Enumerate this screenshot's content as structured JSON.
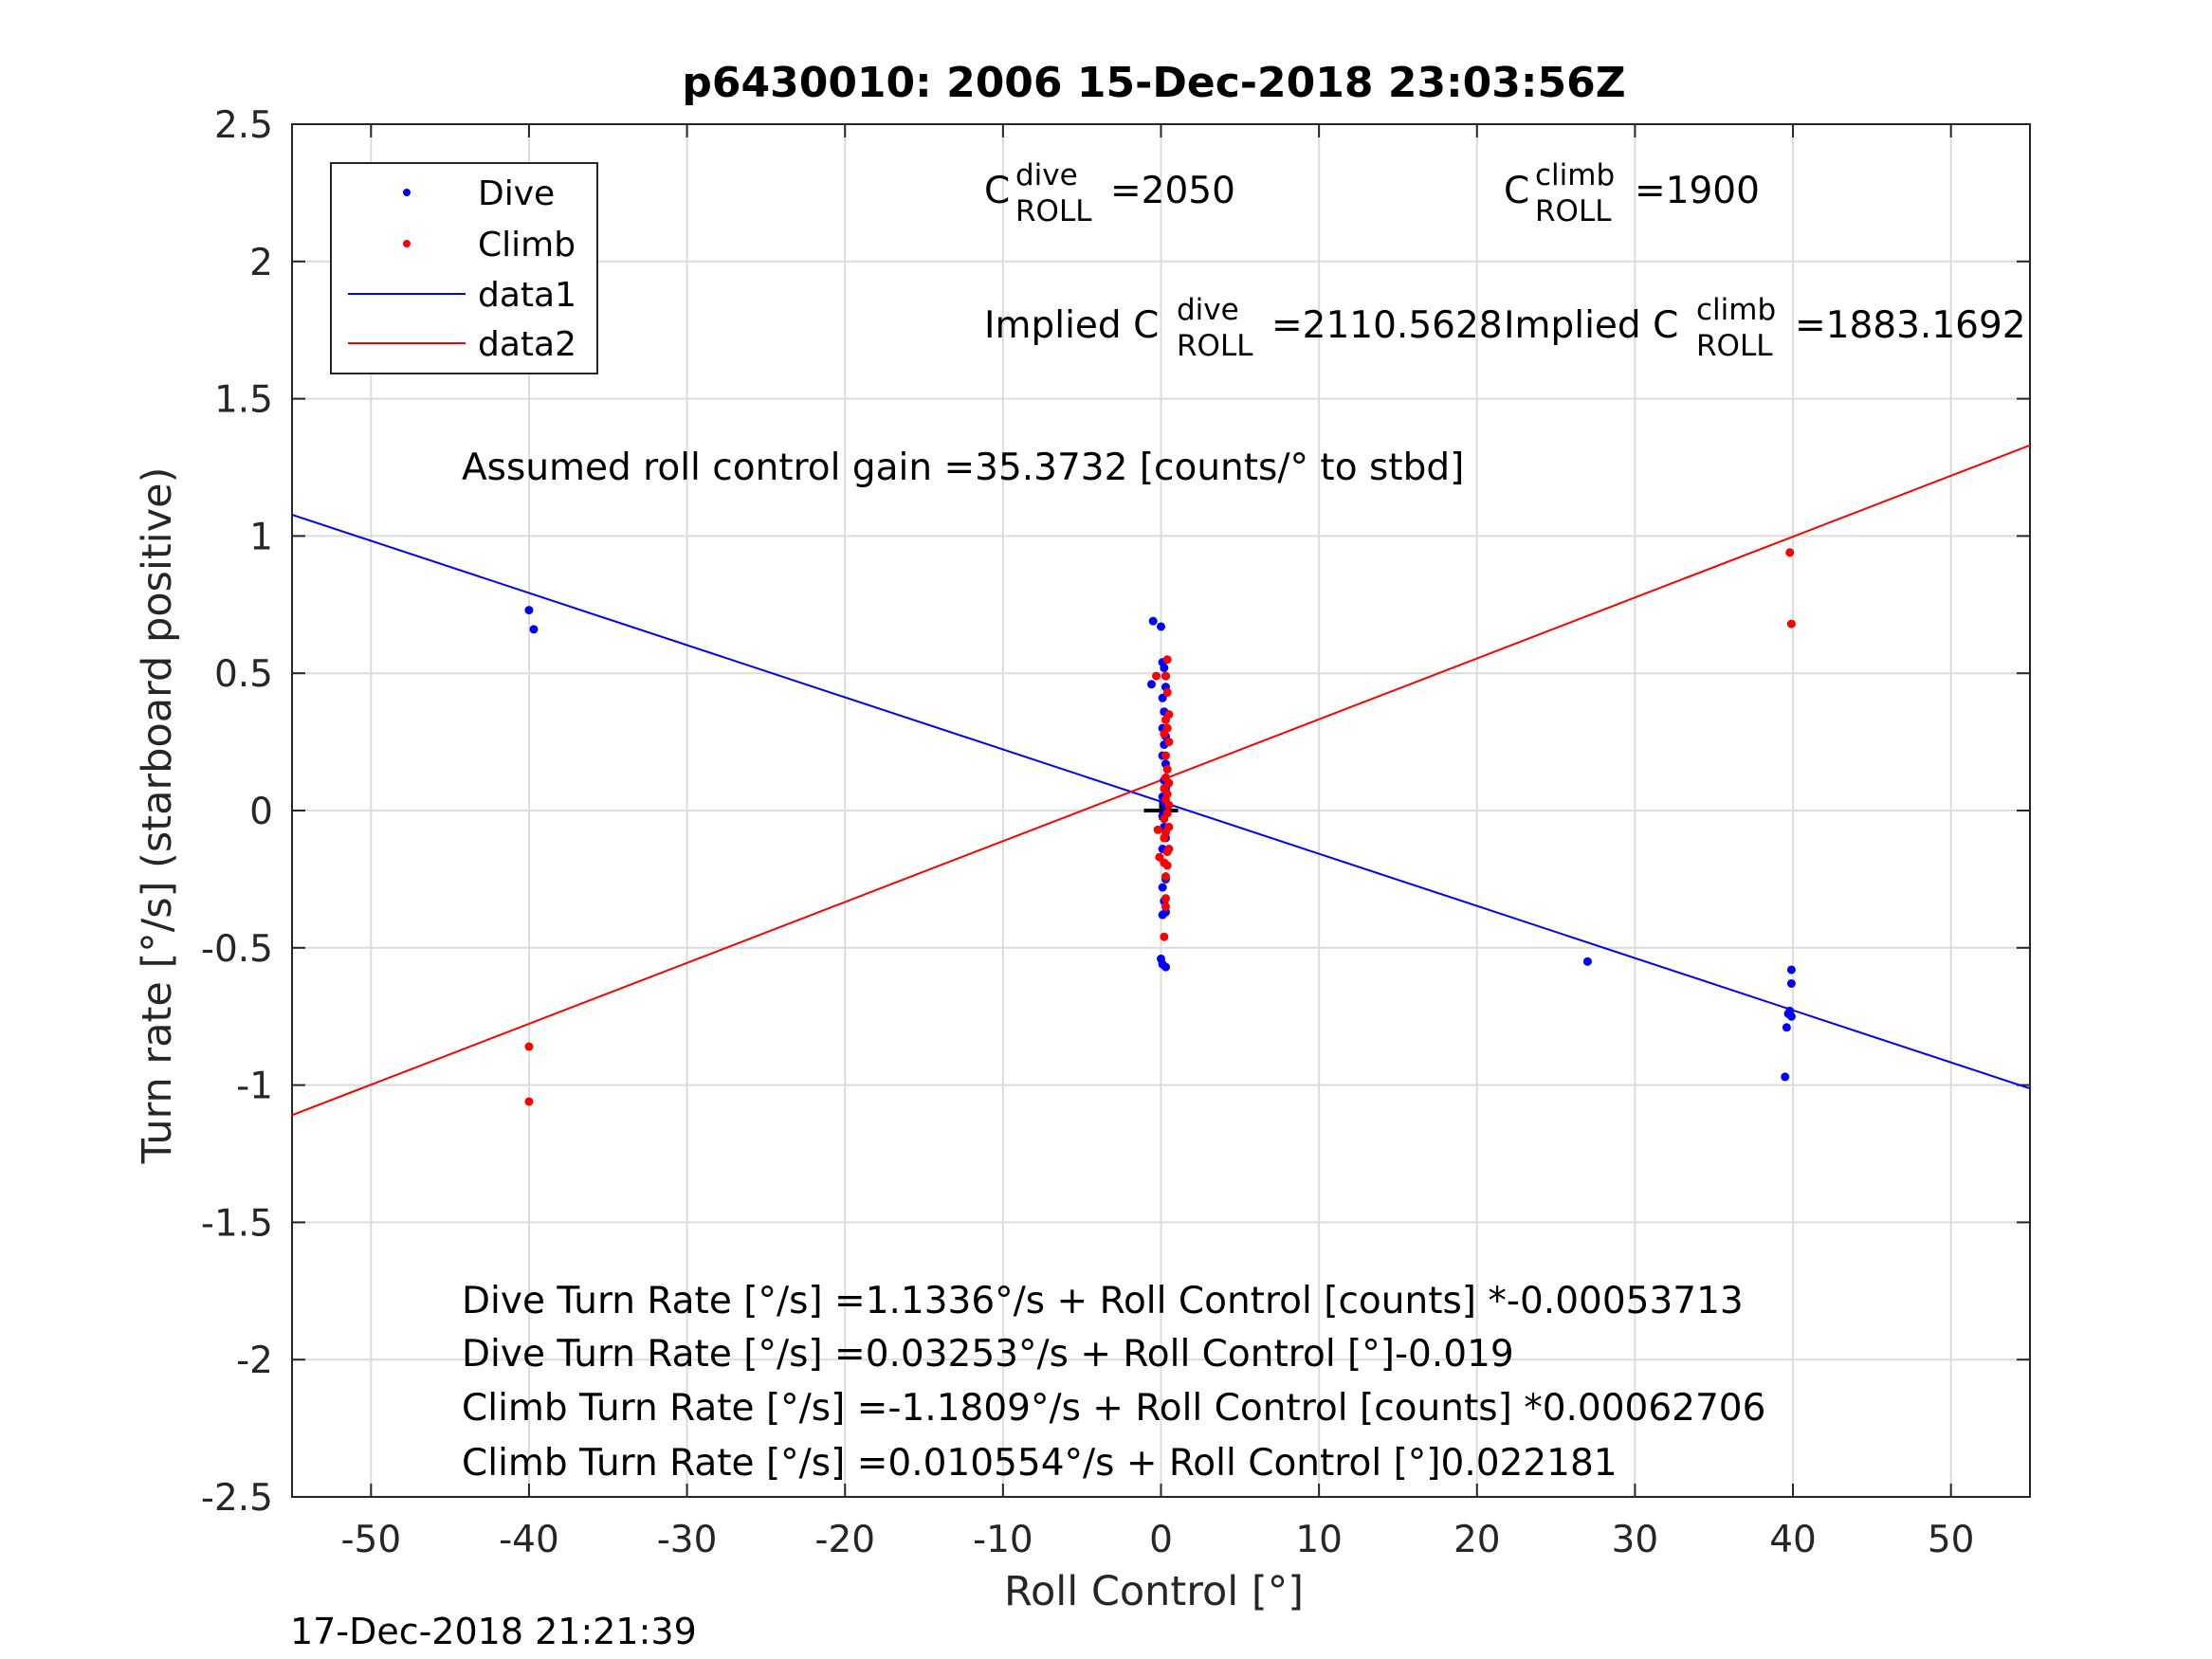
{
  "chart_data": {
    "type": "scatter",
    "title": "p6430010:  2006 15-Dec-2018 23:03:56Z",
    "xlabel": "Roll Control [°]",
    "ylabel": "Turn rate [°/s] (starboard positive)",
    "xlim": [
      -55,
      55
    ],
    "ylim": [
      -2.5,
      2.5
    ],
    "xticks": [
      -50,
      -40,
      -30,
      -20,
      -10,
      0,
      10,
      20,
      30,
      40,
      50
    ],
    "xtick_labels": [
      "-50",
      "-40",
      "-30",
      "-20",
      "-10",
      "0",
      "10",
      "20",
      "30",
      "40",
      "50"
    ],
    "yticks": [
      2.5,
      2,
      1.5,
      1,
      0.5,
      0,
      -0.5,
      -1,
      -1.5,
      -2,
      -2.5
    ],
    "ytick_labels": [
      "2.5",
      "2",
      "1.5",
      "1",
      "0.5",
      "0",
      "-0.5",
      "-1",
      "-1.5",
      "-2",
      "-2.5"
    ],
    "grid": true,
    "legend_position": "top-left",
    "legend": [
      "Dive",
      "Climb",
      "data1",
      "data2"
    ],
    "series": [
      {
        "name": "Dive",
        "kind": "points",
        "color": "#0000ff",
        "points": [
          [
            -40,
            0.73
          ],
          [
            -39.7,
            0.66
          ],
          [
            -0.5,
            0.69
          ],
          [
            0,
            0.67
          ],
          [
            0.1,
            0.54
          ],
          [
            0.2,
            0.52
          ],
          [
            0.3,
            0.49
          ],
          [
            -0.6,
            0.46
          ],
          [
            0.3,
            0.45
          ],
          [
            0.1,
            0.41
          ],
          [
            0.2,
            0.36
          ],
          [
            0.1,
            0.3
          ],
          [
            0.3,
            0.27
          ],
          [
            0.2,
            0.24
          ],
          [
            0.1,
            0.2
          ],
          [
            0.3,
            0.17
          ],
          [
            0.2,
            0.11
          ],
          [
            0.3,
            0.08
          ],
          [
            0.1,
            0.05
          ],
          [
            0.2,
            0.03
          ],
          [
            0.3,
            0.01
          ],
          [
            0.1,
            -0.02
          ],
          [
            0.2,
            -0.06
          ],
          [
            0.3,
            -0.1
          ],
          [
            0.1,
            -0.14
          ],
          [
            0.2,
            -0.19
          ],
          [
            0.3,
            -0.25
          ],
          [
            0.1,
            -0.28
          ],
          [
            0.2,
            -0.33
          ],
          [
            0.3,
            -0.37
          ],
          [
            0.1,
            -0.38
          ],
          [
            0,
            -0.54
          ],
          [
            0.1,
            -0.56
          ],
          [
            0.3,
            -0.57
          ],
          [
            27,
            -0.55
          ],
          [
            39.5,
            -0.97
          ],
          [
            39.6,
            -0.79
          ],
          [
            39.7,
            -0.74
          ],
          [
            39.8,
            -0.73
          ],
          [
            39.9,
            -0.75
          ],
          [
            39.9,
            -0.63
          ],
          [
            39.9,
            -0.58
          ]
        ]
      },
      {
        "name": "Climb",
        "kind": "points",
        "color": "#ff0000",
        "points": [
          [
            -40,
            -0.86
          ],
          [
            -40,
            -1.06
          ],
          [
            -0.3,
            0.49
          ],
          [
            0.4,
            0.55
          ],
          [
            0.3,
            0.49
          ],
          [
            0.4,
            0.43
          ],
          [
            0.5,
            0.35
          ],
          [
            0.3,
            0.33
          ],
          [
            0.4,
            0.3
          ],
          [
            0.2,
            0.28
          ],
          [
            0.5,
            0.25
          ],
          [
            0.3,
            0.2
          ],
          [
            0.4,
            0.15
          ],
          [
            0.3,
            0.12
          ],
          [
            0.5,
            0.1
          ],
          [
            0.2,
            0.08
          ],
          [
            0.4,
            0.06
          ],
          [
            0.3,
            0.04
          ],
          [
            0.5,
            0.02
          ],
          [
            0.4,
            -0.01
          ],
          [
            0.2,
            -0.03
          ],
          [
            0.5,
            -0.06
          ],
          [
            -0.2,
            -0.07
          ],
          [
            0.3,
            -0.08
          ],
          [
            0.2,
            -0.1
          ],
          [
            0.5,
            -0.14
          ],
          [
            0.4,
            -0.15
          ],
          [
            -0.1,
            -0.17
          ],
          [
            0.2,
            -0.19
          ],
          [
            0.4,
            -0.2
          ],
          [
            0.3,
            -0.24
          ],
          [
            0.3,
            -0.32
          ],
          [
            0.3,
            -0.35
          ],
          [
            0.2,
            -0.46
          ],
          [
            39.8,
            0.94
          ],
          [
            39.9,
            0.68
          ]
        ]
      },
      {
        "name": "data1",
        "kind": "line",
        "color": "#0000ff",
        "points": [
          [
            -55,
            1.0775
          ],
          [
            55,
            -1.0125
          ]
        ]
      },
      {
        "name": "data2",
        "kind": "line",
        "color": "#ff0000",
        "points": [
          [
            -55,
            -1.1094
          ],
          [
            55,
            1.3305
          ]
        ]
      }
    ],
    "annotations": {
      "c_dive_letter": "C",
      "c_dive_sup": "dive",
      "c_dive_sub": "ROLL",
      "c_dive_value": "=2050",
      "c_climb_letter": "C",
      "c_climb_sup": "climb",
      "c_climb_sub": "ROLL",
      "c_climb_value": "=1900",
      "implied_dive_prefix": "Implied C",
      "implied_dive_sup": "dive",
      "implied_dive_sub": "ROLL",
      "implied_dive_value": "=2110.5628",
      "implied_climb_prefix": "Implied C",
      "implied_climb_sup": "climb",
      "implied_climb_sub": "ROLL",
      "implied_climb_value": "=1883.1692",
      "gain": "Assumed roll control gain =35.3732 [counts/° to stbd]",
      "eq1": "Dive Turn Rate [°/s] =1.1336°/s + Roll Control [counts] *-0.00053713",
      "eq2": "Dive Turn Rate [°/s] =0.03253°/s + Roll Control [°]-0.019",
      "eq3": "Climb Turn Rate [°/s] =-1.1809°/s + Roll Control [counts] *0.00062706",
      "eq4": "Climb Turn Rate [°/s] =0.010554°/s + Roll Control [°]0.022181"
    },
    "center_marker": "+"
  },
  "footer": {
    "timestamp": "17-Dec-2018 21:21:39"
  }
}
